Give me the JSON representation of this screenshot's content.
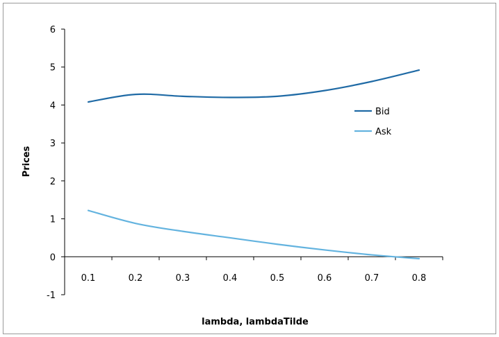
{
  "chart_data": {
    "type": "line",
    "title": "",
    "xlabel": "lambda, lambdaTilde",
    "ylabel": "Prices",
    "x": [
      0.1,
      0.2,
      0.3,
      0.4,
      0.5,
      0.6,
      0.7,
      0.8
    ],
    "x_tick_labels": [
      "0.1",
      "0.2",
      "0.3",
      "0.4",
      "0.5",
      "0.6",
      "0.7",
      "0.8"
    ],
    "y_ticks": [
      -1,
      0,
      1,
      2,
      3,
      4,
      5,
      6
    ],
    "y_tick_labels": [
      "-1",
      "0",
      "1",
      "2",
      "3",
      "4",
      "5",
      "6"
    ],
    "ylim": [
      -1,
      6
    ],
    "grid": false,
    "legend_position": "right",
    "series": [
      {
        "name": "Bid",
        "color": "#1f6aa5",
        "values": [
          4.08,
          4.28,
          4.23,
          4.2,
          4.23,
          4.38,
          4.62,
          4.92
        ]
      },
      {
        "name": "Ask",
        "color": "#63b3df",
        "values": [
          1.22,
          0.88,
          0.67,
          0.5,
          0.33,
          0.18,
          0.05,
          -0.05
        ]
      }
    ]
  }
}
